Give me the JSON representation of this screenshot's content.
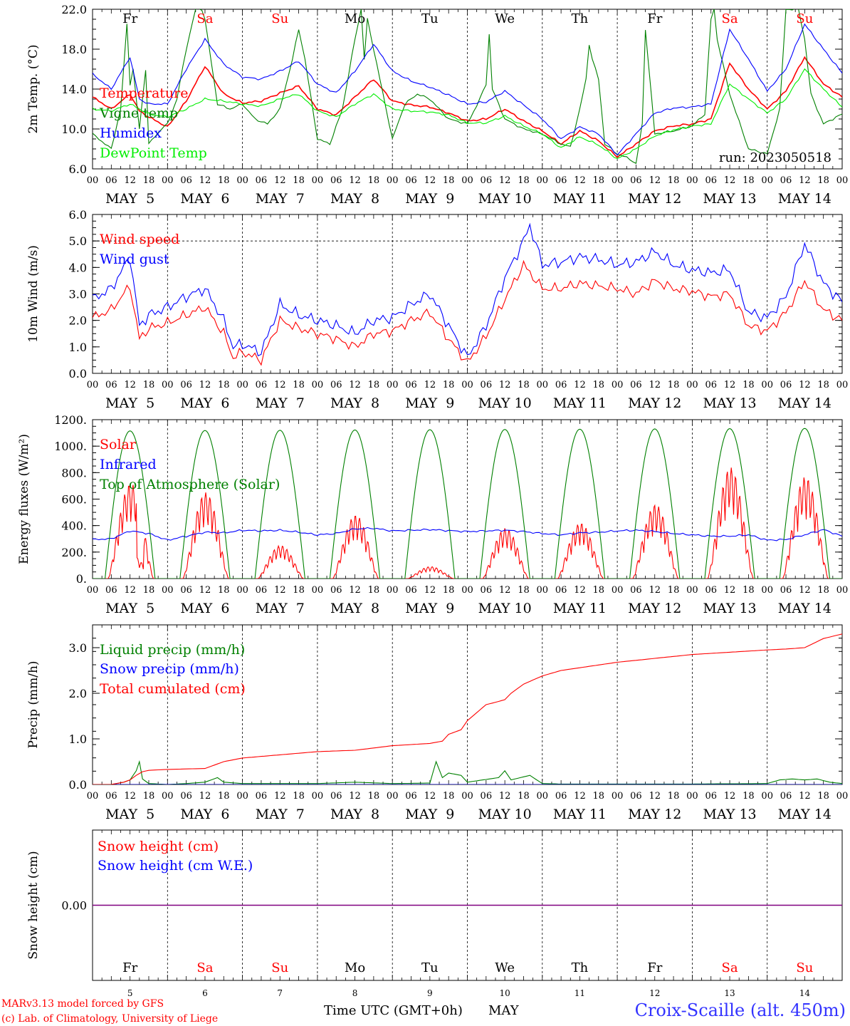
{
  "meta": {
    "model_note": "MARv3.13 model forced by GFS",
    "copyright": "(c) Lab. of Climatology, University of Liege",
    "xaxis_title": "Time UTC (GMT+0h)",
    "month": "MAY",
    "station": "Croix-Scaille (alt. 450m)",
    "run": "run: 2023050518",
    "days": [
      "Fr",
      "Sa",
      "Su",
      "Mo",
      "Tu",
      "We",
      "Th",
      "Fr",
      "Sa",
      "Su"
    ],
    "weekend": [
      false,
      true,
      true,
      false,
      false,
      false,
      false,
      false,
      true,
      true
    ],
    "date_numbers": [
      "5",
      "6",
      "7",
      "8",
      "9",
      "10",
      "11",
      "12",
      "13",
      "14"
    ],
    "date_labels": [
      "MAY  5",
      "MAY  6",
      "MAY  7",
      "MAY  8",
      "MAY  9",
      "MAY 10",
      "MAY 11",
      "MAY 12",
      "MAY 13",
      "MAY 14"
    ],
    "hour_labels": [
      "00",
      "06",
      "12",
      "18"
    ],
    "colors": {
      "red": "#ff0000",
      "green": "#008000",
      "blue": "#0000ff",
      "lightgreen": "#00ee00",
      "purple": "#800080"
    }
  },
  "chart_data": [
    {
      "type": "line",
      "ylabel": "2m Temp. (°C)",
      "ylim": [
        6,
        22
      ],
      "yticks": [
        "6.0",
        "10.0",
        "14.0",
        "18.0",
        "22.0"
      ],
      "show_days": true,
      "series": [
        {
          "name": "Temperature",
          "color": "#ff0000",
          "x": [
            0,
            6,
            12,
            15,
            18,
            24,
            30,
            36,
            42,
            48,
            54,
            60,
            66,
            72,
            78,
            84,
            90,
            96,
            102,
            108,
            114,
            120,
            126,
            132,
            138,
            144,
            150,
            156,
            162,
            168,
            174,
            180,
            186,
            192,
            198,
            204,
            210,
            216,
            222,
            228,
            234,
            240
          ],
          "y": [
            13.2,
            12.0,
            13.5,
            11.8,
            11.2,
            10.2,
            12.8,
            16.3,
            13.5,
            12.6,
            12.8,
            13.6,
            14.3,
            12.0,
            11.4,
            13.2,
            15.0,
            12.8,
            12.4,
            12.2,
            11.6,
            10.8,
            11.0,
            12.0,
            10.8,
            9.8,
            8.5,
            9.8,
            8.8,
            7.2,
            8.5,
            9.8,
            10.3,
            10.5,
            11.0,
            16.6,
            14.0,
            12.0,
            13.8,
            17.2,
            14.5,
            13.2
          ]
        },
        {
          "name": "Vigne temp",
          "color": "#008000",
          "x": [
            0,
            6,
            9,
            11,
            12,
            13,
            15,
            17,
            18,
            22,
            24,
            27,
            30,
            33,
            35,
            36,
            40,
            44,
            48,
            52,
            56,
            60,
            64,
            66,
            68,
            72,
            76,
            80,
            84,
            86,
            87,
            88,
            96,
            100,
            104,
            108,
            114,
            120,
            124,
            126,
            127,
            128,
            132,
            138,
            144,
            150,
            153,
            156,
            158,
            159,
            160,
            162,
            164,
            168,
            172,
            174,
            176,
            177,
            178,
            180,
            186,
            192,
            196,
            198,
            199,
            200,
            204,
            210,
            216,
            220,
            222,
            226,
            228,
            230,
            234,
            240
          ],
          "y": [
            9.5,
            8.0,
            12.0,
            20.5,
            14.5,
            16.0,
            10.0,
            16.0,
            8.5,
            10.0,
            10.5,
            13.0,
            18.0,
            22.0,
            22.0,
            21.0,
            12.5,
            12.0,
            12.5,
            11.0,
            10.5,
            12.0,
            17.0,
            20.0,
            17.0,
            9.0,
            8.5,
            12.0,
            19.0,
            22.0,
            17.0,
            21.0,
            9.0,
            12.5,
            13.5,
            13.0,
            11.0,
            10.5,
            13.0,
            14.5,
            19.5,
            14.0,
            11.0,
            10.0,
            9.5,
            8.5,
            8.2,
            12.0,
            15.0,
            18.5,
            17.0,
            15.0,
            8.5,
            7.5,
            7.0,
            6.5,
            10.5,
            20.0,
            16.5,
            9.5,
            9.8,
            10.3,
            11.5,
            21.0,
            22.0,
            19.0,
            13.5,
            8.0,
            7.5,
            12.0,
            22.0,
            22.0,
            19.0,
            13.5,
            10.5,
            11.5
          ]
        },
        {
          "name": "Humidex",
          "color": "#0000ff",
          "x": [
            0,
            6,
            12,
            15,
            18,
            24,
            30,
            36,
            42,
            48,
            54,
            60,
            66,
            72,
            78,
            84,
            90,
            96,
            102,
            108,
            114,
            120,
            126,
            132,
            138,
            144,
            150,
            156,
            162,
            168,
            174,
            180,
            186,
            192,
            198,
            204,
            210,
            216,
            222,
            228,
            234,
            240
          ],
          "y": [
            15.5,
            14.0,
            17.2,
            13.0,
            12.5,
            12.5,
            16.0,
            19.0,
            16.5,
            15.2,
            15.0,
            15.8,
            16.8,
            14.5,
            13.6,
            15.8,
            18.5,
            15.8,
            14.8,
            14.2,
            13.4,
            12.5,
            12.7,
            13.8,
            12.4,
            11.0,
            9.0,
            10.2,
            9.5,
            7.4,
            9.5,
            11.6,
            12.1,
            12.2,
            12.5,
            20.0,
            17.0,
            13.8,
            16.0,
            20.5,
            18.0,
            15.6
          ]
        },
        {
          "name": "DewPoint Temp",
          "color": "#00ee00",
          "x": [
            0,
            6,
            12,
            18,
            24,
            30,
            36,
            42,
            48,
            54,
            60,
            66,
            72,
            78,
            84,
            90,
            96,
            102,
            108,
            114,
            120,
            126,
            132,
            138,
            144,
            150,
            156,
            162,
            168,
            174,
            180,
            186,
            192,
            198,
            204,
            210,
            216,
            222,
            228,
            234,
            240
          ],
          "y": [
            12.0,
            11.8,
            12.5,
            11.5,
            11.2,
            12.0,
            13.0,
            12.8,
            12.5,
            12.3,
            13.0,
            13.5,
            11.8,
            11.2,
            12.5,
            13.5,
            12.0,
            11.8,
            11.7,
            11.4,
            10.6,
            10.6,
            11.3,
            10.3,
            9.5,
            8.1,
            9.2,
            8.4,
            7.0,
            8.0,
            9.3,
            9.9,
            10.3,
            10.5,
            14.5,
            13.0,
            11.6,
            13.0,
            16.0,
            14.0,
            12.2
          ]
        }
      ],
      "annotations": [
        "run: 2023050518"
      ]
    },
    {
      "type": "line",
      "ylabel": "10m Wind (m/s)",
      "ylim": [
        0,
        6
      ],
      "yticks": [
        "0.0",
        "1.0",
        "2.0",
        "3.0",
        "4.0",
        "5.0",
        "6.0"
      ],
      "hline": 5.0,
      "series": [
        {
          "name": "Wind speed",
          "color": "#ff0000",
          "x": [
            0,
            6,
            12,
            15,
            18,
            24,
            30,
            36,
            42,
            45,
            48,
            54,
            60,
            66,
            72,
            78,
            84,
            90,
            96,
            102,
            108,
            114,
            120,
            126,
            132,
            138,
            144,
            150,
            156,
            162,
            168,
            174,
            180,
            186,
            192,
            198,
            204,
            210,
            216,
            222,
            228,
            234,
            240
          ],
          "y": [
            2.1,
            2.4,
            3.3,
            1.3,
            1.7,
            1.9,
            2.2,
            2.5,
            1.5,
            0.6,
            0.8,
            0.5,
            2.0,
            1.7,
            1.5,
            1.3,
            1.0,
            1.5,
            1.6,
            2.0,
            2.3,
            1.3,
            0.4,
            1.4,
            2.8,
            4.1,
            3.2,
            3.2,
            3.4,
            3.3,
            3.2,
            3.0,
            3.5,
            3.2,
            3.1,
            2.9,
            3.0,
            1.8,
            1.6,
            2.3,
            3.5,
            2.4,
            2.0
          ]
        },
        {
          "name": "Wind gust",
          "color": "#0000ff",
          "x": [
            0,
            6,
            12,
            15,
            18,
            24,
            30,
            36,
            42,
            45,
            48,
            54,
            60,
            66,
            72,
            78,
            84,
            90,
            96,
            102,
            108,
            114,
            120,
            126,
            132,
            138,
            140,
            144,
            150,
            156,
            162,
            168,
            174,
            180,
            186,
            192,
            198,
            204,
            210,
            216,
            222,
            228,
            234,
            240
          ],
          "y": [
            2.8,
            3.2,
            4.4,
            1.8,
            2.2,
            2.5,
            2.9,
            3.2,
            2.0,
            1.0,
            1.1,
            0.8,
            2.6,
            2.2,
            2.0,
            1.8,
            1.5,
            2.0,
            2.1,
            2.6,
            3.0,
            1.8,
            0.6,
            1.8,
            3.6,
            5.0,
            5.6,
            4.1,
            4.2,
            4.4,
            4.3,
            4.1,
            4.2,
            4.6,
            4.1,
            3.9,
            3.8,
            3.9,
            2.3,
            2.1,
            2.9,
            4.9,
            3.4,
            2.7
          ]
        }
      ]
    },
    {
      "type": "line",
      "ylabel": "Energy fluxes (W/m²)",
      "ylim": [
        0,
        1200
      ],
      "yticks": [
        "0.",
        "200.",
        "400.",
        "600.",
        "800.",
        "1000.",
        "1200."
      ],
      "series": [
        {
          "name": "Solar",
          "color": "#ff0000",
          "peaks": [
            720,
            650,
            250,
            480,
            90,
            380,
            420,
            560,
            840,
            770
          ]
        },
        {
          "name": "Infrared",
          "color": "#0000ff",
          "x": [
            0,
            6,
            12,
            18,
            24,
            30,
            36,
            42,
            48,
            54,
            60,
            66,
            72,
            78,
            84,
            90,
            96,
            102,
            108,
            114,
            120,
            126,
            132,
            138,
            144,
            150,
            156,
            162,
            168,
            174,
            180,
            186,
            192,
            198,
            204,
            210,
            216,
            222,
            228,
            234,
            240
          ],
          "y": [
            295,
            300,
            360,
            340,
            290,
            320,
            350,
            345,
            365,
            360,
            365,
            350,
            330,
            340,
            375,
            380,
            360,
            365,
            370,
            362,
            355,
            360,
            365,
            355,
            340,
            330,
            345,
            350,
            360,
            365,
            355,
            340,
            330,
            320,
            320,
            330,
            290,
            295,
            330,
            370,
            320
          ]
        },
        {
          "name": "Top of Atmosphere (Solar)",
          "color": "#008000",
          "peak_values": [
            1115,
            1118,
            1120,
            1122,
            1124,
            1126,
            1128,
            1130,
            1132,
            1134
          ]
        }
      ]
    },
    {
      "type": "line",
      "ylabel": "Precip (mm/h)",
      "ylim": [
        0,
        3.5
      ],
      "yticks": [
        "0.0",
        "1.0",
        "2.0",
        "3.0"
      ],
      "series": [
        {
          "name": "Liquid precip (mm/h)",
          "color": "#008000",
          "x": [
            0,
            6,
            10,
            12,
            14,
            15,
            16,
            18,
            24,
            30,
            36,
            40,
            42,
            48,
            60,
            72,
            84,
            96,
            108,
            110,
            112,
            114,
            118,
            120,
            130,
            132,
            134,
            140,
            144,
            150,
            168,
            192,
            216,
            220,
            224,
            228,
            232,
            236,
            240
          ],
          "y": [
            0,
            0,
            0.05,
            0.1,
            0.3,
            0.5,
            0.12,
            0.02,
            0,
            0.02,
            0.05,
            0.15,
            0.05,
            0.02,
            0.02,
            0.02,
            0.05,
            0.02,
            0.03,
            0.5,
            0.15,
            0.25,
            0.2,
            0.05,
            0.15,
            0.3,
            0.1,
            0.2,
            0.02,
            0.01,
            0.01,
            0.01,
            0.02,
            0.1,
            0.12,
            0.1,
            0.12,
            0.05,
            0.02
          ]
        },
        {
          "name": "Snow precip (mm/h)",
          "color": "#0000ff",
          "x": [
            0,
            240
          ],
          "y": [
            0,
            0
          ]
        },
        {
          "name": "Total cumulated (cm)",
          "color": "#ff0000",
          "x": [
            0,
            6,
            10,
            12,
            14,
            16,
            18,
            24,
            36,
            42,
            48,
            60,
            72,
            84,
            96,
            108,
            112,
            114,
            118,
            120,
            126,
            130,
            132,
            134,
            138,
            144,
            150,
            168,
            192,
            216,
            222,
            228,
            234,
            240
          ],
          "y": [
            0,
            0,
            0.05,
            0.1,
            0.2,
            0.28,
            0.31,
            0.33,
            0.35,
            0.5,
            0.58,
            0.65,
            0.72,
            0.75,
            0.85,
            0.9,
            0.95,
            1.1,
            1.2,
            1.4,
            1.75,
            1.82,
            1.86,
            2.0,
            2.2,
            2.38,
            2.5,
            2.68,
            2.85,
            2.95,
            2.97,
            3.0,
            3.2,
            3.3
          ]
        }
      ]
    },
    {
      "type": "line",
      "ylabel": "Snow height (cm)",
      "ylim": [
        -1,
        1
      ],
      "yticks": [
        "0.00"
      ],
      "series": [
        {
          "name": "Snow height (cm)",
          "color": "#ff0000",
          "x": [
            0,
            240
          ],
          "y": [
            0,
            0
          ]
        },
        {
          "name": "Snow height (cm W.E.)",
          "color": "#0000ff",
          "x": [
            0,
            240
          ],
          "y": [
            0,
            0
          ]
        }
      ]
    }
  ]
}
